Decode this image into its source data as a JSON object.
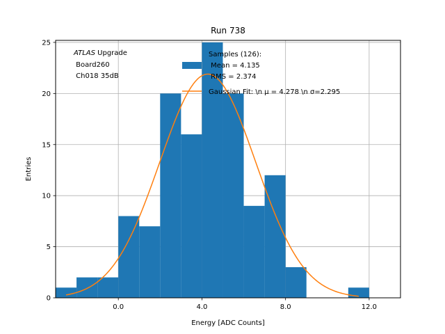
{
  "chart_data": {
    "type": "bar",
    "title": "Run 738",
    "xlabel": "Energy [ADC Counts]",
    "ylabel": "Entries",
    "xlim": [
      -3.0,
      13.5
    ],
    "ylim": [
      0,
      25.2
    ],
    "grid": true,
    "x_ticks": [
      0.0,
      4.0,
      8.0,
      12.0
    ],
    "x_tick_labels": [
      "0.0",
      "4.0",
      "8.0",
      "12.0"
    ],
    "y_ticks": [
      0,
      5,
      10,
      15,
      20,
      25
    ],
    "y_tick_labels": [
      "0",
      "5",
      "10",
      "15",
      "20",
      "25"
    ],
    "histogram": {
      "name": "Samples (126):",
      "color": "#1f77b4",
      "bin_edges": [
        -3.0,
        -2.0,
        -1.0,
        0.0,
        1.0,
        2.0,
        3.0,
        4.0,
        5.0,
        6.0,
        7.0,
        8.0,
        9.0,
        10.0,
        11.0,
        12.0
      ],
      "counts": [
        1,
        2,
        2,
        8,
        7,
        20,
        16,
        25,
        20,
        9,
        12,
        3,
        0,
        0,
        1
      ]
    },
    "fit": {
      "name": "Gaussian Fit",
      "color": "#ff7f0e",
      "type": "gaussian",
      "mu": 4.278,
      "sigma": 2.295,
      "amplitude": 21.9,
      "x_range": [
        -2.5,
        11.5
      ]
    },
    "annotations": {
      "atlas_label": "ATLAS",
      "atlas_suffix": " Upgrade",
      "board": " Board260",
      "channel": " Ch018 35dB"
    },
    "legend": {
      "position": "top-center",
      "hist_label": "Samples (126):",
      "mean_line": " Mean = 4.135",
      "rms_line": " RMS = 2.374",
      "fit_label": "Gaussian Fit: \\n μ = 4.278 \\n σ=2.295"
    }
  }
}
